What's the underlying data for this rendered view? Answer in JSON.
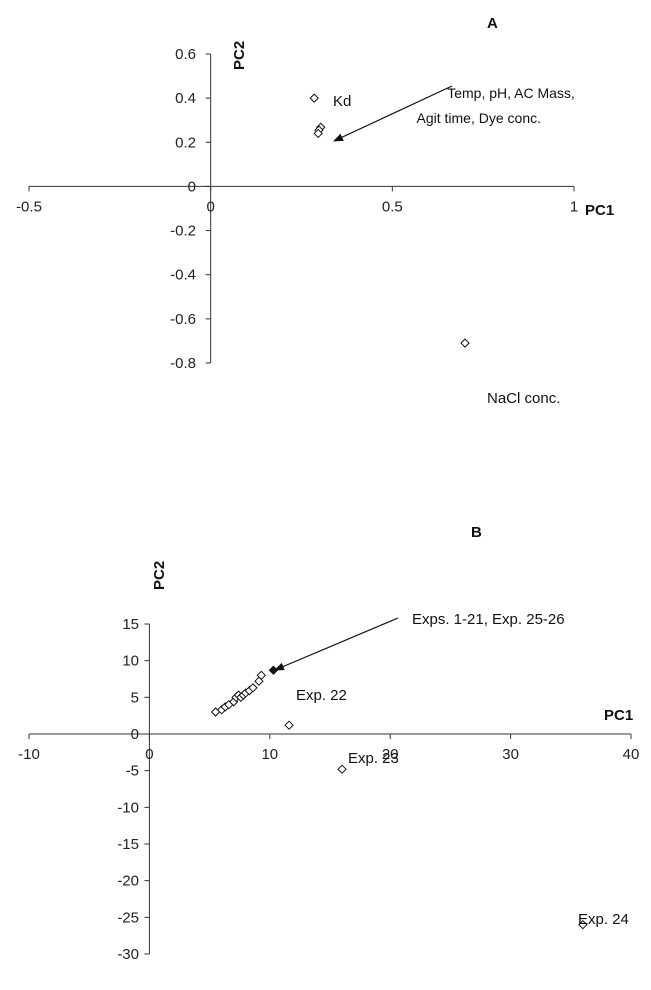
{
  "chart_data": [
    {
      "type": "scatter",
      "panel_label": "A",
      "xlabel": "PC1",
      "ylabel": "PC2",
      "xlim": [
        -0.5,
        1
      ],
      "ylim": [
        -0.8,
        0.6
      ],
      "x_ticks": [
        "-0.5",
        "0",
        "0.5",
        "1"
      ],
      "y_ticks": [
        "0.6",
        "0.4",
        "0.2",
        "0",
        "-0.2",
        "-0.4",
        "-0.6",
        "-0.8"
      ],
      "grid": false,
      "marker": "open-diamond",
      "points": [
        {
          "x": 0.285,
          "y": 0.4
        },
        {
          "x": 0.303,
          "y": 0.268
        },
        {
          "x": 0.298,
          "y": 0.255
        },
        {
          "x": 0.296,
          "y": 0.24
        },
        {
          "x": 0.7,
          "y": -0.71
        }
      ],
      "annotations": [
        {
          "text": "Kd"
        },
        {
          "text": "Temp, pH, AC Mass,"
        },
        {
          "text": "Agit time, Dye conc."
        },
        {
          "text": "NaCl conc."
        }
      ]
    },
    {
      "type": "scatter",
      "panel_label": "B",
      "xlabel": "PC1",
      "ylabel": "PC2",
      "xlim": [
        -10,
        40
      ],
      "ylim": [
        -30,
        15
      ],
      "x_ticks": [
        "-10",
        "0",
        "10",
        "20",
        "30",
        "40"
      ],
      "y_ticks": [
        "15",
        "10",
        "5",
        "0",
        "-5",
        "-10",
        "-15",
        "-20",
        "-25",
        "-30"
      ],
      "grid": false,
      "marker": "open-diamond",
      "points": [
        {
          "x": 5.5,
          "y": 3.0
        },
        {
          "x": 6.0,
          "y": 3.3
        },
        {
          "x": 6.3,
          "y": 3.7
        },
        {
          "x": 6.6,
          "y": 4.0
        },
        {
          "x": 7.0,
          "y": 4.4
        },
        {
          "x": 7.2,
          "y": 5.0
        },
        {
          "x": 7.4,
          "y": 5.3
        },
        {
          "x": 7.6,
          "y": 5.0
        },
        {
          "x": 7.8,
          "y": 5.3
        },
        {
          "x": 8.0,
          "y": 5.6
        },
        {
          "x": 8.3,
          "y": 5.9
        },
        {
          "x": 8.6,
          "y": 6.3
        },
        {
          "x": 9.1,
          "y": 7.2
        },
        {
          "x": 9.3,
          "y": 8.0
        },
        {
          "x": 10.3,
          "y": 8.7,
          "filled": true
        },
        {
          "x": 11.6,
          "y": 1.2
        },
        {
          "x": 16.0,
          "y": -4.8
        },
        {
          "x": 36.0,
          "y": -26.0
        }
      ],
      "annotations": [
        {
          "text": "Exps. 1-21, Exp. 25-26"
        },
        {
          "text": "Exp. 22"
        },
        {
          "text": "Exp. 23"
        },
        {
          "text": "Exp. 24"
        }
      ]
    }
  ]
}
